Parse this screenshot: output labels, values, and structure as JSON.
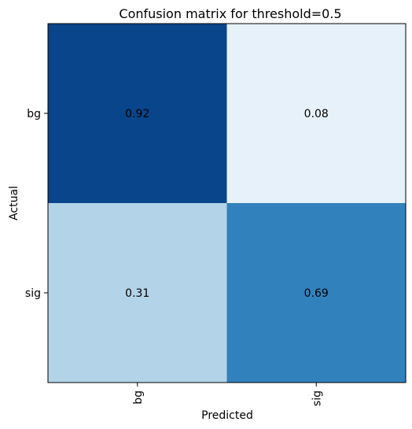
{
  "chart_data": {
    "type": "heatmap",
    "title": "Confusion matrix for threshold=0.5",
    "xlabel": "Predicted",
    "ylabel": "Actual",
    "x_categories": [
      "bg",
      "sig"
    ],
    "y_categories": [
      "bg",
      "sig"
    ],
    "values": [
      [
        0.92,
        0.08
      ],
      [
        0.31,
        0.69
      ]
    ],
    "value_labels": [
      [
        "0.92",
        "0.08"
      ],
      [
        "0.31",
        "0.69"
      ]
    ],
    "colormap": "Blues",
    "vmin": 0,
    "vmax": 1,
    "colors": {
      "low": "#f7fbff",
      "high": "#08306b",
      "text_on_dark": "#ffffff",
      "text_on_light": "#000000"
    },
    "x_tick_rotation": "vertical",
    "grid": false,
    "colorbar": false
  }
}
